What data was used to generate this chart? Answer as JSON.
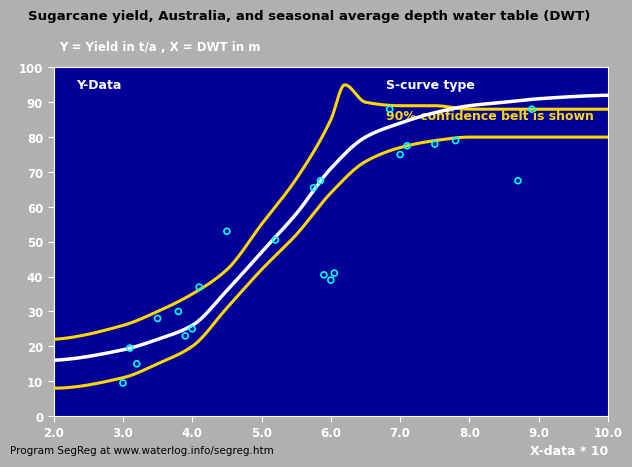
{
  "title": "Sugarcane yield, Australia, and seasonal average depth water table (DWT)",
  "subtitle": "Y = Yield in t/a , X = DWT in m",
  "ylabel": "Y-Data",
  "xlabel": "X-data * 10",
  "xlim": [
    2.0,
    10.0
  ],
  "ylim": [
    0,
    100
  ],
  "xticks": [
    2.0,
    3.0,
    4.0,
    5.0,
    6.0,
    7.0,
    8.0,
    9.0,
    10.0
  ],
  "yticks": [
    0,
    10,
    20,
    30,
    40,
    50,
    60,
    70,
    80,
    90,
    100
  ],
  "background_color": "#000099",
  "outer_background": "#b0b0b0",
  "scatter_x": [
    3.0,
    3.1,
    3.2,
    3.5,
    3.8,
    3.9,
    4.0,
    4.1,
    4.5,
    5.2,
    5.75,
    5.85,
    5.9,
    6.0,
    6.05,
    6.85,
    7.0,
    7.1,
    7.5,
    7.8,
    8.7,
    8.9
  ],
  "scatter_y": [
    9.5,
    19.5,
    15.0,
    28.0,
    30.0,
    23.0,
    25.0,
    37.0,
    53.0,
    50.5,
    65.5,
    67.5,
    40.5,
    39.0,
    41.0,
    88.0,
    75.0,
    77.5,
    78.0,
    79.0,
    67.5,
    88.0
  ],
  "scatter_color": "cyan",
  "curve_color": "white",
  "confidence_color": "#FFD700",
  "annotation_line1": "S-curve type",
  "annotation_line2": "90% confidence belt is shown",
  "annotation_color1": "white",
  "annotation_color2": "#FFD700",
  "footer": "Program SegReg at www.waterlog.info/segreg.htm",
  "title_color": "black",
  "curve_main": {
    "L": 90,
    "k": 1.55,
    "x0": 5.6
  },
  "curve_upper": {
    "L": 130,
    "k": 1.7,
    "x0": 5.5,
    "shift": -5
  },
  "curve_lower": {
    "L": 80,
    "k": 1.3,
    "x0": 5.9
  }
}
